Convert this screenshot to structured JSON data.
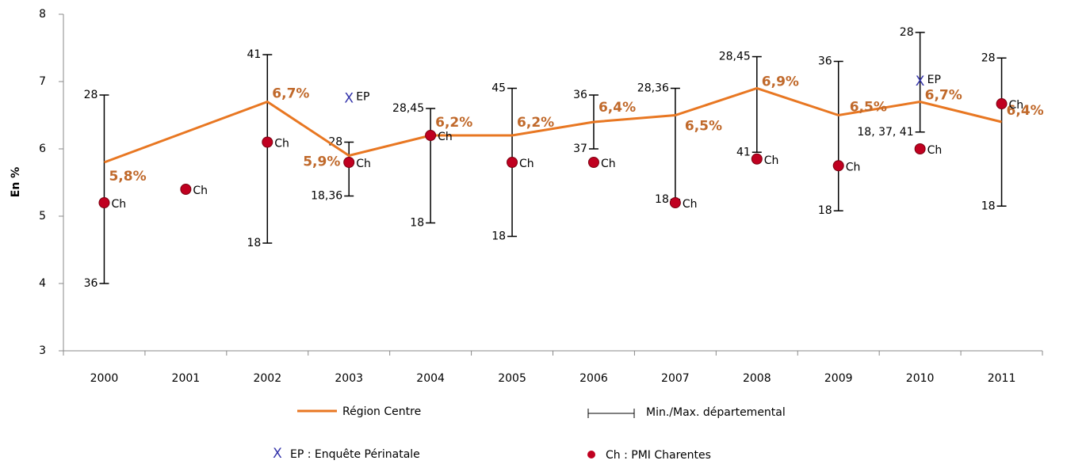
{
  "chart_data": {
    "type": "line",
    "y_label": "En %",
    "categories": [
      "2000",
      "2001",
      "2002",
      "2003",
      "2004",
      "2005",
      "2006",
      "2007",
      "2008",
      "2009",
      "2010",
      "2011"
    ],
    "ylim": [
      3,
      8
    ],
    "yticks": [
      3,
      4,
      5,
      6,
      7,
      8
    ],
    "series": [
      {
        "name": "Région Centre",
        "color": "#e87722",
        "values": [
          5.8,
          6.25,
          6.7,
          5.9,
          6.2,
          6.2,
          6.4,
          6.5,
          6.9,
          6.5,
          6.7,
          6.4
        ],
        "value_labels": [
          "5,8%",
          null,
          "6,7%",
          "5,9%",
          "6,2%",
          "6,2%",
          "6,4%",
          "6,5%",
          "6,9%",
          "6,5%",
          "6,7%",
          "6,4%"
        ]
      },
      {
        "name": "Ch : PMI Charentes",
        "color": "#c00020",
        "point_label": "Ch",
        "values": [
          5.2,
          5.4,
          6.1,
          5.8,
          6.2,
          5.8,
          5.8,
          5.2,
          5.85,
          5.75,
          6.0,
          6.67
        ]
      },
      {
        "name": "EP : Enquête Périnatale",
        "color": "#3333aa",
        "point_label": "EP",
        "marker": "X",
        "values": [
          null,
          null,
          null,
          6.75,
          null,
          null,
          null,
          null,
          null,
          null,
          7.0,
          null
        ]
      },
      {
        "name": "Min./Max. départemental",
        "color": "#000000",
        "min": [
          4.0,
          null,
          4.6,
          5.3,
          4.9,
          4.7,
          6.0,
          5.25,
          5.95,
          5.08,
          6.25,
          5.15
        ],
        "max": [
          6.8,
          null,
          7.4,
          6.1,
          6.6,
          6.9,
          6.8,
          6.9,
          7.37,
          7.3,
          7.73,
          7.35
        ],
        "min_labels": [
          "36",
          null,
          "18",
          "18,36",
          "18",
          "18",
          "37",
          "18",
          "41",
          "18",
          "18, 37, 41",
          "18"
        ],
        "max_labels": [
          "28",
          null,
          "41",
          "28",
          "28,45",
          "45",
          "36",
          "28,36",
          "28,45",
          "36",
          "28",
          "28"
        ]
      }
    ]
  }
}
